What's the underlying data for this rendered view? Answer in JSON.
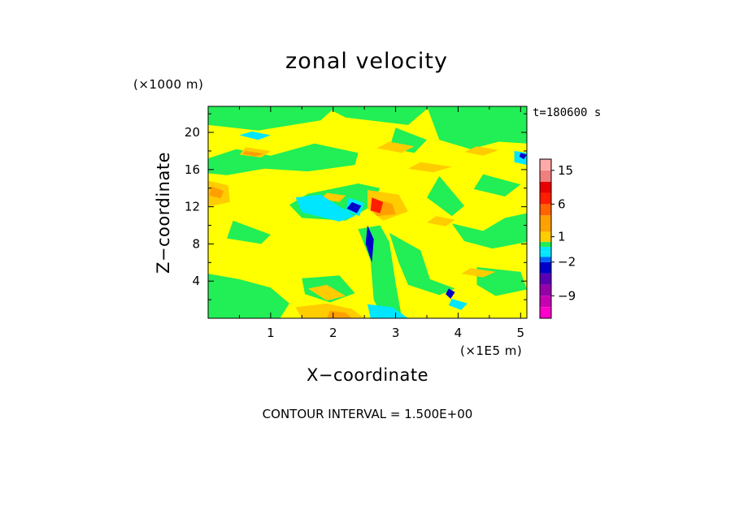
{
  "chart_data": {
    "type": "heatmap",
    "title": "zonal velocity",
    "xlabel": "X−coordinate",
    "ylabel": "Z−coordinate",
    "x_unit": "(×1E5 m)",
    "y_unit": "(×1000 m)",
    "time_label": "t=180600 s",
    "footer": "CONTOUR INTERVAL = 1.500E+00",
    "xlim": [
      0,
      5.1
    ],
    "ylim": [
      0,
      22.8
    ],
    "x_ticks": [
      {
        "value": 1,
        "label": "1"
      },
      {
        "value": 2,
        "label": "2"
      },
      {
        "value": 3,
        "label": "3"
      },
      {
        "value": 4,
        "label": "4"
      },
      {
        "value": 5,
        "label": "5"
      }
    ],
    "y_ticks": [
      {
        "value": 4,
        "label": "4"
      },
      {
        "value": 8,
        "label": "8"
      },
      {
        "value": 12,
        "label": "12"
      },
      {
        "value": 16,
        "label": "16"
      },
      {
        "value": 20,
        "label": "20"
      }
    ],
    "colorbar": {
      "levels": [
        {
          "value": -15.0,
          "color": "#ff00cc"
        },
        {
          "value": -12.0,
          "color": "#c800b4"
        },
        {
          "value": -9.0,
          "color": "#9600aa"
        },
        {
          "value": -6.0,
          "color": "#5a00b4"
        },
        {
          "value": -3.5,
          "color": "#0000c8"
        },
        {
          "value": -2.0,
          "color": "#0064ff"
        },
        {
          "value": -1.0,
          "color": "#00e6ff"
        },
        {
          "value": -0.3,
          "color": "#22ee55"
        },
        {
          "value": 0.3,
          "color": "#ffff00"
        },
        {
          "value": 1.0,
          "color": "#ffcc00"
        },
        {
          "value": 2.5,
          "color": "#ffa000"
        },
        {
          "value": 4.5,
          "color": "#ff6400"
        },
        {
          "value": 6.0,
          "color": "#ff1e00"
        },
        {
          "value": 9.0,
          "color": "#e60000"
        },
        {
          "value": 12.0,
          "color": "#f08080"
        },
        {
          "value": 15.0,
          "color": "#ffaaaa"
        },
        {
          "value": 18.0,
          "color": "#ffcccc"
        }
      ],
      "tick_labels": [
        {
          "label": "15",
          "value": 15
        },
        {
          "label": "6",
          "value": 6
        },
        {
          "label": "1",
          "value": 1
        },
        {
          "label": "−2",
          "value": -2
        },
        {
          "label": "−9",
          "value": -9
        }
      ]
    },
    "field": {
      "background": "#ffff00",
      "regions": [
        {
          "v": -0.3,
          "pts": [
            [
              1.85,
              22.8
            ],
            [
              2.2,
              21.6
            ],
            [
              3.2,
              20.8
            ],
            [
              3.55,
              22.8
            ]
          ]
        },
        {
          "v": -0.3,
          "pts": [
            [
              0.0,
              17.2
            ],
            [
              0.45,
              18.2
            ],
            [
              1.0,
              17.5
            ],
            [
              1.7,
              18.8
            ],
            [
              2.4,
              17.8
            ],
            [
              2.35,
              16.5
            ],
            [
              1.6,
              15.8
            ],
            [
              0.9,
              16.1
            ],
            [
              0.3,
              15.4
            ],
            [
              0.0,
              15.6
            ]
          ]
        },
        {
          "v": -0.3,
          "pts": [
            [
              0.0,
              22.8
            ],
            [
              0.0,
              20.8
            ],
            [
              0.8,
              20.2
            ],
            [
              1.8,
              21.3
            ],
            [
              2.05,
              22.8
            ]
          ]
        },
        {
          "v": -0.3,
          "pts": [
            [
              3.5,
              22.8
            ],
            [
              3.7,
              19.2
            ],
            [
              4.2,
              18.2
            ],
            [
              4.65,
              19.0
            ],
            [
              5.1,
              18.8
            ],
            [
              5.1,
              22.8
            ]
          ]
        },
        {
          "v": -0.3,
          "pts": [
            [
              3.0,
              20.5
            ],
            [
              3.5,
              19.2
            ],
            [
              3.3,
              17.8
            ],
            [
              2.9,
              18.3
            ]
          ]
        },
        {
          "v": -0.3,
          "pts": [
            [
              4.4,
              15.5
            ],
            [
              5.0,
              14.4
            ],
            [
              4.75,
              13.1
            ],
            [
              4.25,
              13.9
            ]
          ]
        },
        {
          "v": -0.3,
          "pts": [
            [
              2.4,
              14.5
            ],
            [
              1.6,
              13.4
            ],
            [
              1.3,
              12.2
            ],
            [
              1.5,
              10.8
            ],
            [
              2.2,
              10.5
            ],
            [
              2.6,
              12.0
            ],
            [
              2.75,
              14.0
            ]
          ]
        },
        {
          "v": -0.3,
          "pts": [
            [
              0.4,
              10.5
            ],
            [
              1.0,
              9.0
            ],
            [
              0.85,
              8.0
            ],
            [
              0.3,
              8.6
            ]
          ]
        },
        {
          "v": -0.3,
          "pts": [
            [
              2.4,
              9.6
            ],
            [
              2.6,
              6.2
            ],
            [
              2.65,
              2.0
            ],
            [
              2.8,
              0.0
            ],
            [
              3.1,
              0.0
            ],
            [
              3.0,
              3.8
            ],
            [
              2.9,
              8.2
            ],
            [
              2.75,
              10.0
            ]
          ]
        },
        {
          "v": -0.3,
          "pts": [
            [
              2.9,
              9.2
            ],
            [
              3.4,
              7.3
            ],
            [
              3.55,
              4.2
            ],
            [
              3.95,
              3.2
            ],
            [
              3.7,
              2.5
            ],
            [
              3.2,
              3.6
            ],
            [
              3.05,
              6.0
            ]
          ]
        },
        {
          "v": -0.3,
          "pts": [
            [
              3.9,
              10.2
            ],
            [
              4.4,
              9.4
            ],
            [
              4.75,
              10.8
            ],
            [
              5.1,
              11.3
            ],
            [
              5.1,
              8.2
            ],
            [
              4.55,
              7.5
            ],
            [
              4.1,
              8.3
            ]
          ]
        },
        {
          "v": -0.3,
          "pts": [
            [
              0.0,
              4.8
            ],
            [
              0.5,
              4.2
            ],
            [
              1.0,
              3.3
            ],
            [
              1.3,
              1.6
            ],
            [
              1.15,
              0.0
            ],
            [
              0.0,
              0.0
            ]
          ]
        },
        {
          "v": -0.3,
          "pts": [
            [
              1.5,
              4.3
            ],
            [
              2.1,
              4.6
            ],
            [
              2.35,
              2.7
            ],
            [
              1.95,
              1.7
            ],
            [
              1.55,
              2.6
            ]
          ]
        },
        {
          "v": -0.3,
          "pts": [
            [
              4.3,
              5.5
            ],
            [
              5.0,
              5.0
            ],
            [
              5.1,
              3.1
            ],
            [
              4.6,
              2.4
            ],
            [
              4.3,
              3.6
            ]
          ]
        },
        {
          "v": -0.3,
          "pts": [
            [
              3.7,
              15.3
            ],
            [
              4.1,
              12.1
            ],
            [
              3.9,
              11.0
            ],
            [
              3.5,
              13.0
            ]
          ]
        },
        {
          "v": 1.0,
          "pts": [
            [
              0.0,
              14.8
            ],
            [
              0.32,
              14.3
            ],
            [
              0.35,
              12.5
            ],
            [
              0.0,
              12.0
            ]
          ]
        },
        {
          "v": 1.0,
          "pts": [
            [
              0.6,
              18.4
            ],
            [
              1.0,
              18.0
            ],
            [
              0.85,
              17.3
            ],
            [
              0.5,
              17.6
            ]
          ]
        },
        {
          "v": 1.0,
          "pts": [
            [
              1.9,
              13.5
            ],
            [
              2.2,
              13.2
            ],
            [
              2.1,
              12.5
            ],
            [
              1.8,
              12.8
            ]
          ]
        },
        {
          "v": 1.0,
          "pts": [
            [
              2.9,
              19.0
            ],
            [
              3.3,
              18.5
            ],
            [
              3.1,
              17.8
            ],
            [
              2.7,
              18.3
            ]
          ]
        },
        {
          "v": 1.0,
          "pts": [
            [
              3.4,
              16.8
            ],
            [
              3.9,
              16.3
            ],
            [
              3.6,
              15.7
            ],
            [
              3.2,
              16.1
            ]
          ]
        },
        {
          "v": 1.0,
          "pts": [
            [
              4.3,
              18.5
            ],
            [
              4.65,
              18.1
            ],
            [
              4.4,
              17.5
            ],
            [
              4.1,
              17.9
            ]
          ]
        },
        {
          "v": 1.0,
          "pts": [
            [
              2.55,
              13.8
            ],
            [
              3.05,
              13.3
            ],
            [
              3.2,
              11.5
            ],
            [
              2.8,
              10.5
            ],
            [
              2.55,
              11.8
            ]
          ]
        },
        {
          "v": 1.0,
          "pts": [
            [
              1.6,
              3.2
            ],
            [
              1.9,
              3.6
            ],
            [
              2.2,
              2.4
            ],
            [
              1.9,
              1.9
            ]
          ]
        },
        {
          "v": 1.0,
          "pts": [
            [
              1.4,
              1.2
            ],
            [
              1.9,
              1.6
            ],
            [
              2.3,
              1.0
            ],
            [
              2.5,
              0.0
            ],
            [
              1.5,
              0.0
            ]
          ]
        },
        {
          "v": 1.0,
          "pts": [
            [
              3.65,
              11.0
            ],
            [
              3.95,
              10.6
            ],
            [
              3.8,
              9.9
            ],
            [
              3.5,
              10.3
            ]
          ]
        },
        {
          "v": 1.0,
          "pts": [
            [
              4.2,
              5.4
            ],
            [
              4.6,
              5.0
            ],
            [
              4.4,
              4.4
            ],
            [
              4.05,
              4.8
            ]
          ]
        },
        {
          "v": -1.0,
          "pts": [
            [
              1.4,
              13.0
            ],
            [
              1.8,
              13.3
            ],
            [
              2.35,
              11.0
            ],
            [
              2.1,
              10.4
            ],
            [
              1.5,
              11.4
            ]
          ]
        },
        {
          "v": -1.0,
          "pts": [
            [
              2.25,
              13.0
            ],
            [
              2.5,
              12.4
            ],
            [
              2.42,
              11.0
            ],
            [
              2.2,
              11.6
            ]
          ]
        },
        {
          "v": -1.0,
          "pts": [
            [
              0.7,
              20.1
            ],
            [
              1.0,
              19.7
            ],
            [
              0.8,
              19.2
            ],
            [
              0.5,
              19.7
            ]
          ]
        },
        {
          "v": -1.0,
          "pts": [
            [
              2.55,
              1.5
            ],
            [
              2.95,
              1.2
            ],
            [
              3.2,
              0.0
            ],
            [
              2.6,
              0.0
            ]
          ]
        },
        {
          "v": -1.0,
          "pts": [
            [
              3.9,
              2.1
            ],
            [
              4.15,
              1.6
            ],
            [
              4.05,
              0.9
            ],
            [
              3.85,
              1.4
            ]
          ]
        },
        {
          "v": -1.0,
          "pts": [
            [
              4.9,
              18.0
            ],
            [
              5.1,
              17.8
            ],
            [
              5.1,
              16.5
            ],
            [
              4.9,
              16.8
            ]
          ]
        },
        {
          "v": 2.5,
          "pts": [
            [
              0.6,
              18.0
            ],
            [
              0.9,
              17.7
            ],
            [
              0.75,
              17.4
            ],
            [
              0.55,
              17.7
            ]
          ]
        },
        {
          "v": 2.5,
          "pts": [
            [
              2.62,
              12.9
            ],
            [
              2.95,
              12.3
            ],
            [
              3.0,
              11.2
            ],
            [
              2.7,
              11.0
            ],
            [
              2.6,
              12.0
            ]
          ]
        },
        {
          "v": 2.5,
          "pts": [
            [
              1.95,
              0.8
            ],
            [
              2.2,
              0.6
            ],
            [
              2.3,
              0.0
            ],
            [
              1.9,
              0.0
            ]
          ]
        },
        {
          "v": 2.5,
          "pts": [
            [
              0.05,
              14.2
            ],
            [
              0.25,
              13.7
            ],
            [
              0.2,
              12.9
            ],
            [
              0.02,
              13.2
            ]
          ]
        },
        {
          "v": 6.0,
          "pts": [
            [
              2.62,
              13.0
            ],
            [
              2.8,
              12.5
            ],
            [
              2.75,
              11.3
            ],
            [
              2.6,
              11.6
            ]
          ]
        },
        {
          "v": -3.5,
          "pts": [
            [
              2.3,
              12.5
            ],
            [
              2.45,
              12.1
            ],
            [
              2.38,
              11.3
            ],
            [
              2.22,
              11.8
            ]
          ]
        },
        {
          "v": -3.5,
          "pts": [
            [
              2.55,
              10.0
            ],
            [
              2.65,
              8.5
            ],
            [
              2.62,
              6.0
            ],
            [
              2.52,
              8.0
            ]
          ]
        },
        {
          "v": -3.5,
          "pts": [
            [
              3.85,
              3.2
            ],
            [
              3.95,
              2.8
            ],
            [
              3.88,
              2.1
            ],
            [
              3.8,
              2.6
            ]
          ]
        },
        {
          "v": -3.5,
          "pts": [
            [
              5.0,
              17.8
            ],
            [
              5.1,
              17.6
            ],
            [
              5.05,
              17.1
            ],
            [
              4.98,
              17.4
            ]
          ]
        }
      ]
    }
  }
}
